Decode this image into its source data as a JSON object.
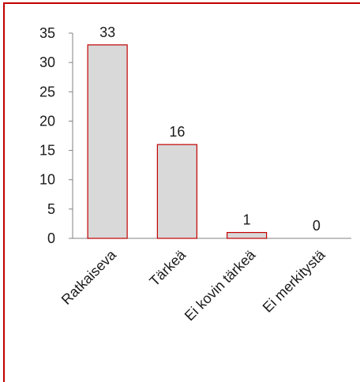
{
  "chart_data": {
    "type": "bar",
    "categories": [
      "Ratkaiseva",
      "Tärkeä",
      "Ei kovin tärkeä",
      "Ei merkitystä"
    ],
    "values": [
      33,
      16,
      1,
      0
    ],
    "data_labels": [
      "33",
      "16",
      "1",
      "0"
    ],
    "ylim": [
      0,
      35
    ],
    "yticks": [
      0,
      5,
      10,
      15,
      20,
      25,
      30,
      35
    ],
    "grid": false,
    "legend": "none",
    "colors": {
      "bar_fill": "#d9d9d9",
      "bar_stroke": "#c00000",
      "axis": "#808080",
      "frame": "#c00000"
    }
  }
}
